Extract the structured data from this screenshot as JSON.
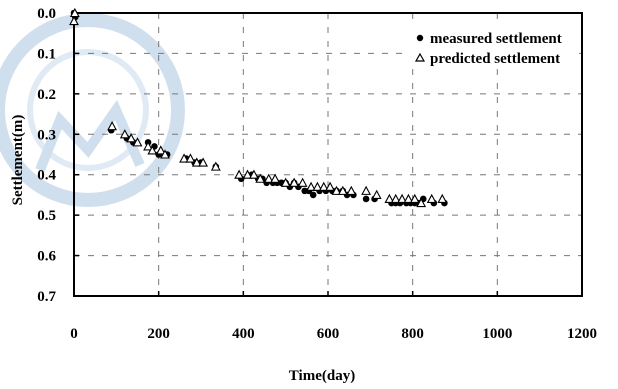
{
  "chart_data": {
    "type": "scatter",
    "title": "",
    "xlabel": "Time(day)",
    "ylabel": "Settlement(m)",
    "xlim": [
      0,
      1200
    ],
    "ylim": [
      0.7,
      0.0
    ],
    "x_ticks": [
      "0",
      "200",
      "400",
      "600",
      "800",
      "1000",
      "1200"
    ],
    "y_ticks": [
      "0.0",
      "0.1",
      "0.2",
      "0.3",
      "0.4",
      "0.5",
      "0.6",
      "0.7"
    ],
    "grid": "dashed vertical and horizontal lines at major ticks",
    "legend_position": "top-right",
    "series": [
      {
        "name": "measured settlement",
        "marker": "filled-circle",
        "color": "#000000",
        "points": [
          [
            0,
            0.0
          ],
          [
            3,
            0.01
          ],
          [
            88,
            0.29
          ],
          [
            125,
            0.31
          ],
          [
            140,
            0.32
          ],
          [
            175,
            0.32
          ],
          [
            190,
            0.33
          ],
          [
            200,
            0.35
          ],
          [
            220,
            0.35
          ],
          [
            265,
            0.36
          ],
          [
            285,
            0.37
          ],
          [
            300,
            0.37
          ],
          [
            335,
            0.38
          ],
          [
            395,
            0.41
          ],
          [
            420,
            0.4
          ],
          [
            435,
            0.41
          ],
          [
            445,
            0.41
          ],
          [
            455,
            0.42
          ],
          [
            470,
            0.42
          ],
          [
            480,
            0.42
          ],
          [
            490,
            0.42
          ],
          [
            500,
            0.42
          ],
          [
            510,
            0.43
          ],
          [
            520,
            0.42
          ],
          [
            530,
            0.43
          ],
          [
            545,
            0.44
          ],
          [
            555,
            0.44
          ],
          [
            565,
            0.45
          ],
          [
            580,
            0.44
          ],
          [
            595,
            0.44
          ],
          [
            610,
            0.44
          ],
          [
            620,
            0.44
          ],
          [
            635,
            0.44
          ],
          [
            645,
            0.45
          ],
          [
            660,
            0.45
          ],
          [
            690,
            0.46
          ],
          [
            710,
            0.46
          ],
          [
            750,
            0.47
          ],
          [
            760,
            0.47
          ],
          [
            770,
            0.47
          ],
          [
            785,
            0.47
          ],
          [
            795,
            0.47
          ],
          [
            805,
            0.47
          ],
          [
            815,
            0.47
          ],
          [
            825,
            0.46
          ],
          [
            850,
            0.47
          ],
          [
            875,
            0.47
          ]
        ]
      },
      {
        "name": "predicted settlement",
        "marker": "open-triangle",
        "color": "#000000",
        "points": [
          [
            0,
            0.02
          ],
          [
            2,
            0.0
          ],
          [
            90,
            0.28
          ],
          [
            120,
            0.3
          ],
          [
            135,
            0.31
          ],
          [
            150,
            0.32
          ],
          [
            175,
            0.33
          ],
          [
            185,
            0.34
          ],
          [
            205,
            0.34
          ],
          [
            215,
            0.35
          ],
          [
            260,
            0.36
          ],
          [
            275,
            0.36
          ],
          [
            290,
            0.37
          ],
          [
            305,
            0.37
          ],
          [
            335,
            0.38
          ],
          [
            390,
            0.4
          ],
          [
            410,
            0.4
          ],
          [
            425,
            0.4
          ],
          [
            440,
            0.41
          ],
          [
            460,
            0.41
          ],
          [
            475,
            0.41
          ],
          [
            500,
            0.42
          ],
          [
            520,
            0.42
          ],
          [
            540,
            0.42
          ],
          [
            560,
            0.43
          ],
          [
            575,
            0.43
          ],
          [
            590,
            0.43
          ],
          [
            605,
            0.43
          ],
          [
            620,
            0.44
          ],
          [
            635,
            0.44
          ],
          [
            655,
            0.44
          ],
          [
            690,
            0.44
          ],
          [
            715,
            0.45
          ],
          [
            745,
            0.46
          ],
          [
            760,
            0.46
          ],
          [
            775,
            0.46
          ],
          [
            790,
            0.46
          ],
          [
            805,
            0.46
          ],
          [
            820,
            0.47
          ],
          [
            845,
            0.46
          ],
          [
            870,
            0.46
          ]
        ]
      }
    ]
  }
}
